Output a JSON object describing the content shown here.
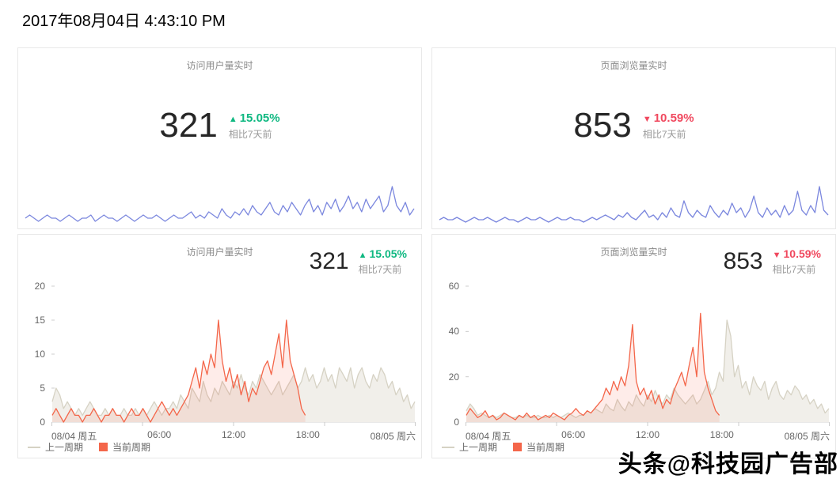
{
  "page": {
    "timestamp": "2017年08月04日 4:43:10 PM",
    "watermark": "头条@科技园广告部"
  },
  "stats": {
    "visitors": {
      "title": "访问用户量实时",
      "value": "321",
      "arrow": "▲",
      "delta": "15.05%",
      "direction": "up",
      "compare": "相比7天前"
    },
    "pageviews": {
      "title": "页面浏览量实时",
      "value": "853",
      "arrow": "▼",
      "delta": "10.59%",
      "direction": "down",
      "compare": "相比7天前"
    }
  },
  "legend": {
    "prev": "上一周期",
    "current": "当前周期"
  },
  "colors": {
    "spark": "#7b87de",
    "up": "#0fb881",
    "down": "#f0485e",
    "current": "#f4664a",
    "prev": "#d6d2c4",
    "axis": "#e9e9e9",
    "tick": "#cccccc"
  },
  "chart_data": [
    {
      "kind": "spark",
      "type": "line",
      "title": "访问用户量实时",
      "color": "#7b87de",
      "series": [
        {
          "name": "访问用户量",
          "values": [
            2,
            3,
            2,
            1,
            2,
            3,
            2,
            2,
            1,
            2,
            3,
            2,
            1,
            2,
            2,
            3,
            1,
            2,
            3,
            2,
            2,
            1,
            2,
            3,
            2,
            1,
            2,
            3,
            2,
            2,
            3,
            2,
            1,
            2,
            3,
            2,
            2,
            3,
            4,
            2,
            3,
            2,
            4,
            3,
            2,
            5,
            3,
            2,
            4,
            3,
            5,
            3,
            6,
            4,
            3,
            5,
            7,
            4,
            3,
            6,
            4,
            7,
            5,
            3,
            6,
            8,
            4,
            6,
            3,
            7,
            5,
            8,
            4,
            6,
            9,
            5,
            7,
            4,
            8,
            5,
            7,
            9,
            4,
            6,
            12,
            6,
            4,
            7,
            3,
            5
          ]
        }
      ]
    },
    {
      "kind": "spark",
      "type": "line",
      "title": "页面浏览量实时",
      "color": "#7b87de",
      "series": [
        {
          "name": "页面浏览量",
          "values": [
            2,
            3,
            2,
            2,
            3,
            2,
            1,
            2,
            3,
            2,
            2,
            3,
            2,
            1,
            2,
            3,
            2,
            2,
            1,
            2,
            3,
            2,
            2,
            3,
            2,
            1,
            2,
            3,
            2,
            2,
            3,
            2,
            2,
            1,
            2,
            3,
            2,
            3,
            4,
            3,
            2,
            4,
            3,
            5,
            3,
            2,
            4,
            6,
            3,
            4,
            2,
            5,
            3,
            7,
            4,
            3,
            10,
            5,
            3,
            6,
            4,
            3,
            8,
            5,
            3,
            6,
            4,
            9,
            5,
            7,
            3,
            6,
            12,
            5,
            3,
            7,
            4,
            6,
            3,
            8,
            4,
            6,
            14,
            6,
            4,
            8,
            5,
            16,
            6,
            4
          ]
        }
      ]
    },
    {
      "kind": "compare",
      "type": "line",
      "title": "访问用户量实时",
      "ylim": [
        0,
        20
      ],
      "yticks": [
        0,
        5,
        10,
        15,
        20
      ],
      "xticks": [
        "08/04 周五",
        "06:00",
        "12:00",
        "18:00",
        "08/05 周六"
      ],
      "x_slots": 97,
      "series": [
        {
          "name": "上一周期",
          "color_key": "prev",
          "fill": "rgba(214,210,196,0.35)",
          "values": [
            3,
            5,
            4,
            2,
            3,
            2,
            1,
            2,
            1,
            2,
            3,
            2,
            1,
            1,
            2,
            1,
            2,
            1,
            1,
            2,
            1,
            1,
            2,
            1,
            2,
            1,
            2,
            3,
            2,
            1,
            2,
            2,
            3,
            2,
            4,
            3,
            2,
            5,
            4,
            3,
            6,
            4,
            3,
            5,
            4,
            6,
            5,
            4,
            6,
            5,
            7,
            5,
            4,
            6,
            5,
            7,
            6,
            5,
            4,
            5,
            6,
            4,
            5,
            6,
            7,
            5,
            6,
            8,
            6,
            7,
            5,
            6,
            8,
            6,
            7,
            5,
            8,
            7,
            6,
            8,
            5,
            7,
            8,
            6,
            5,
            7,
            6,
            8,
            7,
            5,
            6,
            4,
            5,
            3,
            4,
            2,
            3
          ]
        },
        {
          "name": "当前周期",
          "color_key": "current",
          "fill": "rgba(244,102,74,0.12)",
          "values": [
            1,
            2,
            1,
            0,
            1,
            2,
            1,
            1,
            0,
            1,
            1,
            2,
            1,
            0,
            1,
            1,
            2,
            1,
            1,
            0,
            1,
            2,
            1,
            1,
            2,
            1,
            0,
            1,
            2,
            3,
            2,
            1,
            2,
            1,
            2,
            3,
            4,
            6,
            8,
            5,
            9,
            7,
            10,
            8,
            15,
            9,
            6,
            8,
            5,
            7,
            4,
            6,
            3,
            5,
            4,
            6,
            8,
            9,
            7,
            10,
            13,
            8,
            15,
            9,
            7,
            5,
            2,
            1
          ]
        }
      ]
    },
    {
      "kind": "compare",
      "type": "line",
      "title": "页面浏览量实时",
      "ylim": [
        0,
        60
      ],
      "yticks": [
        0,
        20,
        40,
        60
      ],
      "xticks": [
        "08/04 周五",
        "06:00",
        "12:00",
        "18:00",
        "08/05 周六"
      ],
      "x_slots": 97,
      "series": [
        {
          "name": "上一周期",
          "color_key": "prev",
          "fill": "rgba(214,210,196,0.35)",
          "values": [
            5,
            8,
            6,
            3,
            4,
            3,
            2,
            3,
            2,
            3,
            4,
            3,
            2,
            2,
            3,
            2,
            3,
            2,
            2,
            3,
            2,
            2,
            3,
            2,
            3,
            2,
            3,
            4,
            3,
            2,
            3,
            3,
            5,
            4,
            6,
            5,
            4,
            8,
            6,
            5,
            10,
            7,
            5,
            9,
            7,
            12,
            9,
            7,
            12,
            9,
            14,
            10,
            8,
            12,
            10,
            15,
            12,
            10,
            8,
            10,
            12,
            8,
            10,
            14,
            18,
            12,
            15,
            22,
            18,
            45,
            38,
            20,
            25,
            15,
            18,
            12,
            20,
            16,
            14,
            18,
            10,
            15,
            18,
            12,
            10,
            14,
            12,
            16,
            14,
            10,
            12,
            8,
            10,
            6,
            8,
            4,
            6
          ]
        },
        {
          "name": "当前周期",
          "color_key": "current",
          "fill": "rgba(244,102,74,0.12)",
          "values": [
            3,
            6,
            4,
            2,
            3,
            5,
            2,
            3,
            1,
            2,
            4,
            3,
            2,
            1,
            3,
            2,
            4,
            2,
            3,
            1,
            2,
            3,
            2,
            4,
            3,
            2,
            1,
            3,
            4,
            6,
            4,
            3,
            5,
            4,
            6,
            8,
            10,
            15,
            12,
            18,
            14,
            20,
            16,
            25,
            43,
            18,
            12,
            15,
            10,
            14,
            8,
            12,
            6,
            10,
            8,
            14,
            18,
            22,
            16,
            25,
            33,
            20,
            48,
            22,
            15,
            10,
            5,
            3
          ]
        }
      ]
    }
  ]
}
